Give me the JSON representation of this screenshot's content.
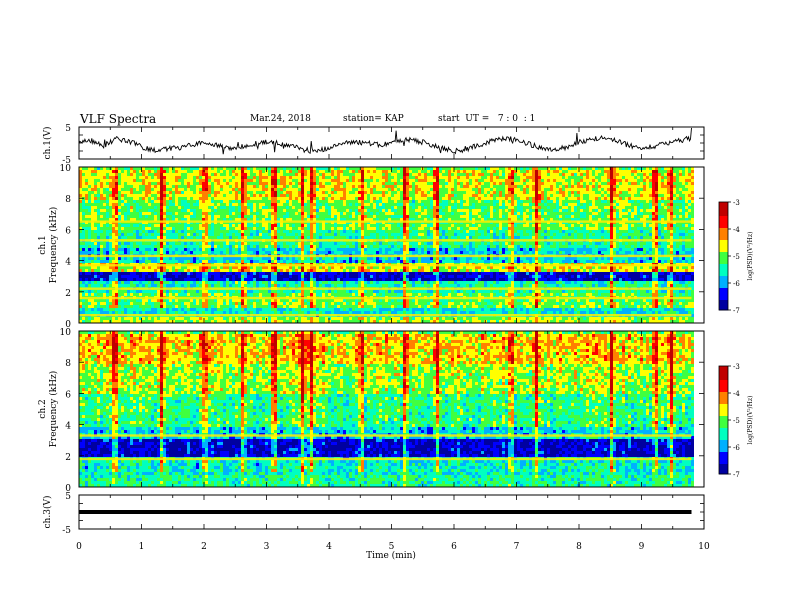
{
  "header": {
    "title": "VLF Spectra",
    "date": "Mar.24, 2018",
    "station": "station= KAP",
    "start": "start  UT =   7 : 0  : 1"
  },
  "chart_data": [
    {
      "type": "line",
      "panel": "ch1-waveform",
      "ylabel": "ch.1(V)",
      "ylim": [
        -5,
        5
      ],
      "yticks": [
        "5",
        "-5"
      ],
      "x_range": [
        0,
        9.8
      ],
      "series": [
        {
          "values": [
            0.3,
            0.8,
            -0.8,
            1.2,
            0.6,
            -1.2,
            -2.3,
            -1.8,
            -1.5,
            -0.6,
            0.1,
            -0.6,
            -1.6,
            -1.0,
            -0.2,
            0.4,
            0.0,
            -0.8,
            -2.2,
            -2.5,
            -1.6,
            -0.5,
            0.5,
            -0.1,
            -0.6,
            0.2,
            1.2,
            0.8,
            -0.3,
            -1.6,
            -2.6,
            -2.0,
            -0.6,
            0.6,
            1.6,
            0.9,
            -0.3,
            -1.5,
            -2.4,
            -1.2,
            0.2,
            1.3,
            1.6,
            0.6,
            -0.8,
            -1.8,
            -1.0,
            -0.1,
            0.7,
            1.6
          ]
        }
      ],
      "line_color": "#000000"
    },
    {
      "type": "heatmap",
      "panel": "ch1-spectrogram",
      "ylabel_top": "ch.1",
      "ylabel": "Frequency (kHz)",
      "ylim": [
        0,
        10
      ],
      "yticks": [
        "0",
        "2",
        "4",
        "6",
        "8",
        "10"
      ],
      "colorbar": {
        "label": "log(PSD)(V²/Hz)",
        "range": [
          -7,
          -3
        ],
        "ticks": [
          "-3",
          "-4",
          "-5",
          "-6",
          "-7"
        ],
        "colormap": [
          "#0000a0",
          "#0000ff",
          "#00b0ff",
          "#00ffc0",
          "#40ff40",
          "#ffff00",
          "#ff8000",
          "#ff0000",
          "#c00000"
        ]
      },
      "band_levels": [
        {
          "kHz": [
            0,
            0.5
          ],
          "level": -4.8
        },
        {
          "kHz": [
            0.5,
            1.0
          ],
          "level": -5.6
        },
        {
          "kHz": [
            1.0,
            2.0
          ],
          "level": -5.0
        },
        {
          "kHz": [
            2.0,
            2.8
          ],
          "level": -5.4
        },
        {
          "kHz": [
            2.8,
            3.4
          ],
          "level": -6.6
        },
        {
          "kHz": [
            3.4,
            4.0
          ],
          "level": -4.6
        },
        {
          "kHz": [
            4.0,
            5.0
          ],
          "level": -5.7
        },
        {
          "kHz": [
            5.0,
            6.0
          ],
          "level": -5.3
        },
        {
          "kHz": [
            6.0,
            8.0
          ],
          "level": -5.0
        },
        {
          "kHz": [
            8.0,
            10.0
          ],
          "level": -4.6
        }
      ],
      "lines_kHz": [
        0.5,
        1.6,
        2.2,
        3.7,
        4.3,
        5.3,
        6.5
      ],
      "bursts_min": [
        0.55,
        1.3,
        2.0,
        2.6,
        3.1,
        3.55,
        3.7,
        4.5,
        5.2,
        5.7,
        6.9,
        7.3,
        8.5,
        9.2,
        9.45
      ]
    },
    {
      "type": "heatmap",
      "panel": "ch2-spectrogram",
      "ylabel_top": "ch.2",
      "ylabel": "Frequency (kHz)",
      "ylim": [
        0,
        10
      ],
      "yticks": [
        "0",
        "2",
        "4",
        "6",
        "8",
        "10"
      ],
      "colorbar": {
        "label": "log(PSD)(V²/Hz)",
        "range": [
          -7,
          -3
        ],
        "ticks": [
          "-3",
          "-4",
          "-5",
          "-6",
          "-7"
        ],
        "colormap": [
          "#0000a0",
          "#0000ff",
          "#00b0ff",
          "#00ffc0",
          "#40ff40",
          "#ffff00",
          "#ff8000",
          "#ff0000",
          "#c00000"
        ]
      },
      "band_levels": [
        {
          "kHz": [
            0,
            0.8
          ],
          "level": -5.3
        },
        {
          "kHz": [
            0.8,
            2.0
          ],
          "level": -5.5
        },
        {
          "kHz": [
            2.0,
            3.2
          ],
          "level": -6.6
        },
        {
          "kHz": [
            3.2,
            4.0
          ],
          "level": -5.7
        },
        {
          "kHz": [
            4.0,
            6.0
          ],
          "level": -5.2
        },
        {
          "kHz": [
            6.0,
            8.0
          ],
          "level": -4.8
        },
        {
          "kHz": [
            8.0,
            10.0
          ],
          "level": -4.4
        }
      ],
      "lines_kHz": [
        1.8,
        3.3
      ],
      "bursts_min": [
        0.55,
        1.3,
        2.0,
        2.6,
        3.1,
        3.55,
        3.7,
        4.5,
        5.2,
        5.7,
        6.9,
        7.3,
        8.5,
        9.2,
        9.45
      ]
    },
    {
      "type": "line",
      "panel": "ch3-waveform",
      "ylabel": "ch.3(V)",
      "ylim": [
        -5,
        5
      ],
      "yticks": [
        "5",
        "-5"
      ],
      "x_range": [
        0,
        9.8
      ],
      "series": [
        {
          "values": [
            0,
            0
          ]
        }
      ],
      "line_color": "#000000",
      "xlabel": "Time (min)",
      "xticks": [
        "0",
        "1",
        "2",
        "3",
        "4",
        "5",
        "6",
        "7",
        "8",
        "9",
        "10"
      ],
      "xlim": [
        0,
        10
      ]
    }
  ]
}
